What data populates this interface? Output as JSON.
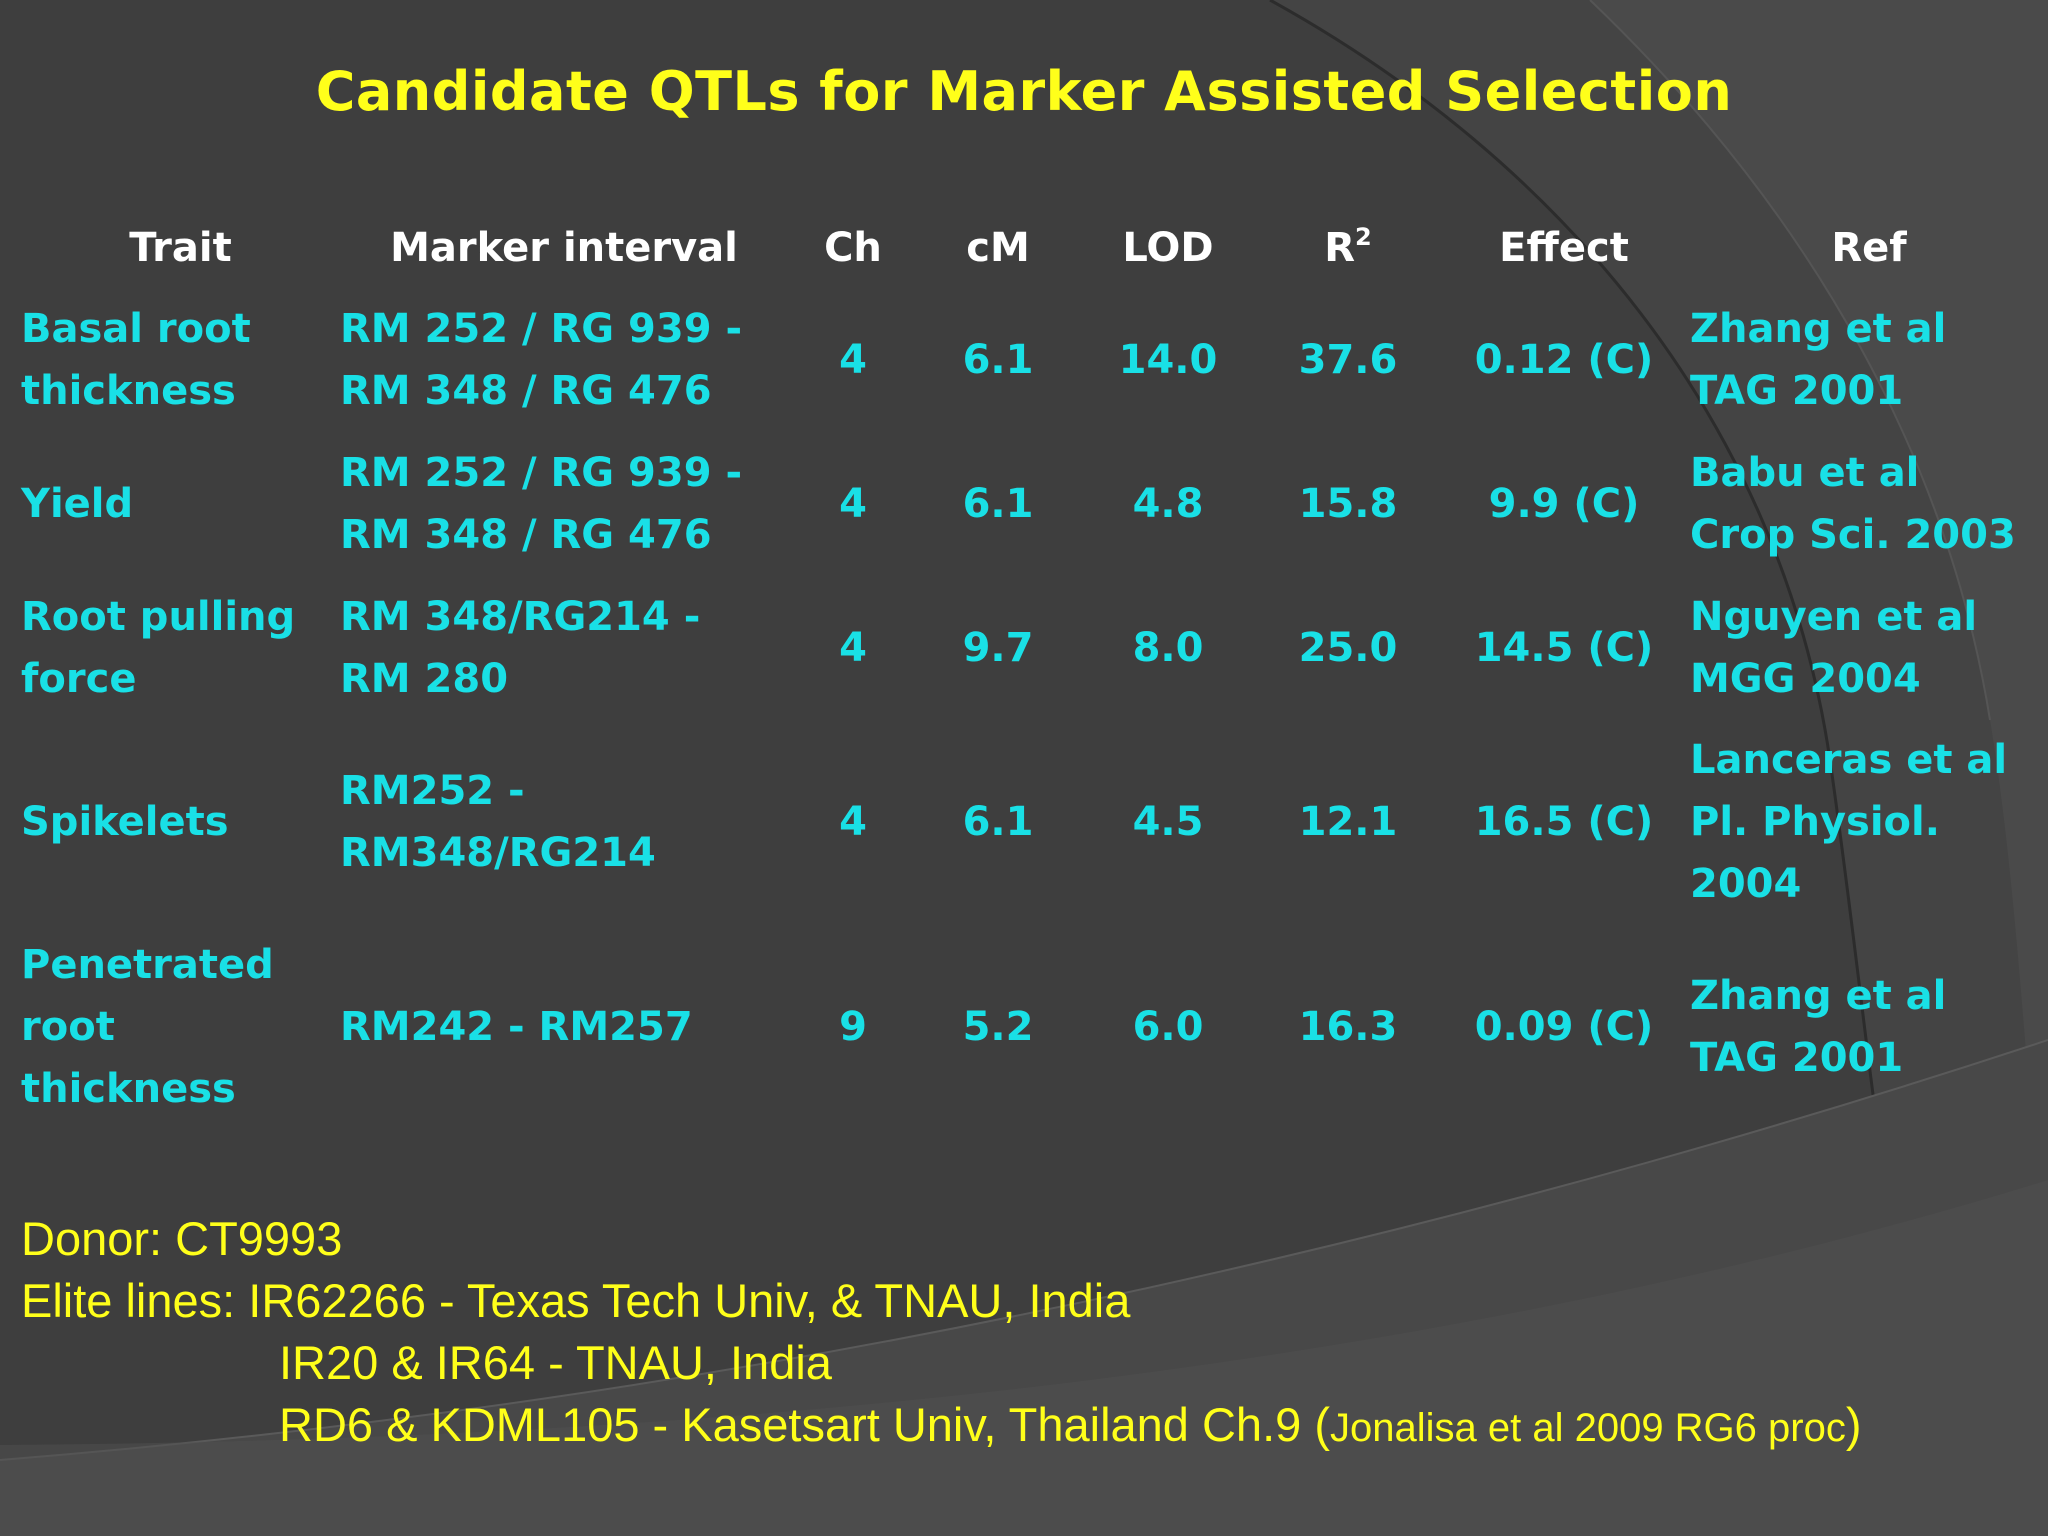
{
  "slide": {
    "title": "Candidate QTLs for Marker Assisted Selection"
  },
  "table": {
    "headers": {
      "trait": "Trait",
      "marker": "Marker interval",
      "ch": "Ch",
      "cm": "cM",
      "lod": "LOD",
      "r2_base": "R",
      "r2_sup": "2",
      "effect": "Effect",
      "ref": "Ref"
    },
    "rows": [
      {
        "trait": [
          "Basal root",
          "thickness"
        ],
        "marker": [
          "RM 252 / RG 939 -",
          "RM 348 / RG 476"
        ],
        "ch": "4",
        "cm": "6.1",
        "lod": "14.0",
        "r2": "37.6",
        "effect": "0.12 (C)",
        "ref": [
          "Zhang et al",
          "TAG 2001"
        ]
      },
      {
        "trait": [
          "Yield"
        ],
        "marker": [
          "RM 252 / RG 939 -",
          "RM 348 / RG 476"
        ],
        "ch": "4",
        "cm": "6.1",
        "lod": "4.8",
        "r2": "15.8",
        "effect": "9.9 (C)",
        "ref": [
          "Babu et al",
          "Crop Sci. 2003"
        ]
      },
      {
        "trait": [
          "Root pulling",
          "force"
        ],
        "marker": [
          "RM 348/RG214 -",
          "RM 280"
        ],
        "ch": "4",
        "cm": "9.7",
        "lod": "8.0",
        "r2": "25.0",
        "effect": "14.5 (C)",
        "ref": [
          "Nguyen et al",
          "MGG 2004"
        ]
      },
      {
        "trait": [
          "Spikelets"
        ],
        "marker": [
          "RM252 -",
          "RM348/RG214"
        ],
        "ch": "4",
        "cm": "6.1",
        "lod": "4.5",
        "r2": "12.1",
        "effect": "16.5 (C)",
        "ref": [
          "Lanceras et al",
          "Pl. Physiol.",
          "2004"
        ]
      },
      {
        "trait": [
          "Penetrated",
          "root",
          "thickness"
        ],
        "marker": [
          "RM242 - RM257"
        ],
        "ch": "9",
        "cm": "5.2",
        "lod": "6.0",
        "r2": "16.3",
        "effect": "0.09 (C)",
        "ref": [
          "Zhang et al",
          "TAG 2001"
        ]
      }
    ]
  },
  "notes": {
    "donor": "Donor: CT9993",
    "elite_line1": "Elite lines: IR62266 - Texas Tech Univ, & TNAU, India",
    "elite_line2": "IR20 & IR64 - TNAU, India",
    "elite_line3_main": "RD6 & KDML105 - Kasetsart Univ, Thailand Ch.9 (",
    "elite_line3_small": "Jonalisa et al 2009 RG6 proc",
    "elite_line3_end": ")"
  },
  "colors": {
    "background": "#3f3f3f",
    "title": "#ffff1a",
    "header": "#ffffff",
    "cell": "#19e0e6",
    "notes": "#ffff1a"
  }
}
